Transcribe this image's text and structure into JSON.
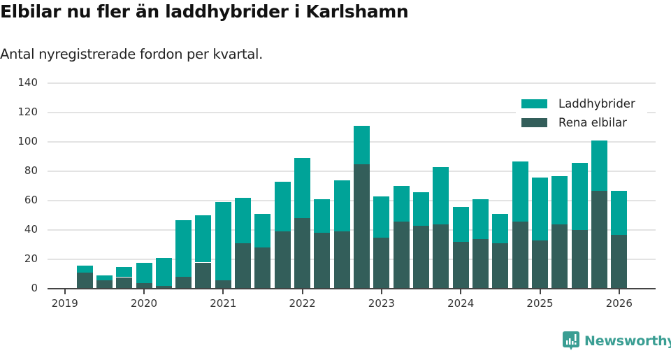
{
  "header": {
    "title": "Elbilar nu fler än laddhybrider i Karlshamn",
    "subtitle": "Antal nyregistrerade fordon per kvartal."
  },
  "colors": {
    "laddhybrider": "#00A398",
    "rena_elbilar": "#335E5A",
    "grid": "#e3e3e3",
    "axis": "#444444"
  },
  "legend": {
    "items": [
      {
        "label": "Laddhybrider",
        "color": "#00A398"
      },
      {
        "label": "Rena elbilar",
        "color": "#335E5A"
      }
    ]
  },
  "brand": {
    "name": "Newsworthy",
    "icon": "newsworthy-logo-icon"
  },
  "chart_data": {
    "type": "bar",
    "stacked": true,
    "title": "Elbilar nu fler än laddhybrider i Karlshamn",
    "subtitle": "Antal nyregistrerade fordon per kvartal.",
    "xlabel": "",
    "ylabel": "",
    "ylim": [
      0,
      140
    ],
    "yticks": [
      0,
      20,
      40,
      60,
      80,
      100,
      120,
      140
    ],
    "xticks": [
      "2019",
      "2020",
      "2021",
      "2022",
      "2023",
      "2024",
      "2025",
      "2026"
    ],
    "grid": true,
    "legend_position": "top-right",
    "categories": [
      "2019-Q2",
      "2019-Q3",
      "2019-Q4",
      "2020-Q1",
      "2020-Q2",
      "2020-Q3",
      "2020-Q4",
      "2021-Q1",
      "2021-Q2",
      "2021-Q3",
      "2021-Q4",
      "2022-Q1",
      "2022-Q2",
      "2022-Q3",
      "2022-Q4",
      "2023-Q1",
      "2023-Q2",
      "2023-Q3",
      "2023-Q4",
      "2024-Q1",
      "2024-Q2",
      "2024-Q3",
      "2024-Q4",
      "2025-Q1",
      "2025-Q2",
      "2025-Q3",
      "2025-Q4",
      "2026-Q1"
    ],
    "series": [
      {
        "name": "Rena elbilar",
        "color": "#335E5A",
        "values": [
          11,
          6,
          8,
          4,
          2,
          8,
          18,
          6,
          31,
          28,
          39,
          48,
          38,
          39,
          85,
          35,
          46,
          43,
          44,
          32,
          34,
          31,
          46,
          33,
          44,
          40,
          67,
          37
        ]
      },
      {
        "name": "Laddhybrider",
        "color": "#00A398",
        "values": [
          5,
          3,
          7,
          14,
          19,
          39,
          32,
          53,
          31,
          23,
          34,
          41,
          23,
          35,
          26,
          28,
          24,
          23,
          39,
          24,
          27,
          20,
          41,
          43,
          33,
          46,
          34,
          30
        ]
      }
    ],
    "totals": [
      16,
      9,
      15,
      18,
      21,
      47,
      50,
      59,
      62,
      51,
      73,
      89,
      61,
      74,
      111,
      63,
      70,
      66,
      83,
      56,
      61,
      51,
      87,
      76,
      77,
      86,
      101,
      67
    ]
  }
}
